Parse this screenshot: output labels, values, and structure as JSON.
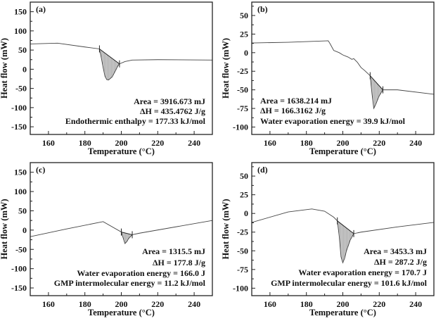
{
  "chart_data": [
    {
      "type": "line",
      "panel_label": "(a)",
      "xlabel": "Temperature (°C)",
      "ylabel": "Heat flow (mW)",
      "xlim": [
        150,
        250
      ],
      "ylim": [
        -170,
        175
      ],
      "xticks": [
        160,
        180,
        200,
        220,
        240
      ],
      "yticks": [
        150,
        100,
        50,
        0,
        -50,
        -100,
        -150
      ],
      "x": [
        150,
        165,
        180,
        188,
        189,
        190,
        191,
        192,
        193,
        195,
        197,
        198,
        199,
        202,
        206,
        220,
        250
      ],
      "y": [
        66,
        68,
        58,
        53,
        30,
        5,
        -18,
        -27,
        -28,
        -20,
        -2,
        8,
        14,
        20,
        24,
        25,
        24
      ],
      "peak_baseline": {
        "x": [
          188,
          199
        ],
        "y": [
          53,
          14
        ]
      },
      "annotations": [
        "Area = 3916.673 mJ",
        "ΔH = 435.4762 J/g",
        "Endothermic enthalpy = 177.33  kJ/mol"
      ],
      "annotation_align": "right"
    },
    {
      "type": "line",
      "panel_label": "(b)",
      "xlabel": "Temperature (°C)",
      "ylabel": "Heat flow (mW)",
      "xlim": [
        150,
        250
      ],
      "ylim": [
        -110,
        68
      ],
      "xticks": [
        160,
        180,
        200,
        220,
        240
      ],
      "yticks": [
        50,
        25,
        0,
        -25,
        -50,
        -75,
        -100
      ],
      "x": [
        150,
        170,
        192,
        193,
        195,
        198,
        200,
        203,
        205,
        206,
        208,
        210,
        212,
        215,
        216,
        217,
        218,
        220,
        222,
        230,
        250
      ],
      "y": [
        13,
        14,
        16,
        12,
        3,
        0,
        -3,
        -6,
        -9,
        -8,
        -13,
        -20,
        -24,
        -31,
        -55,
        -75,
        -70,
        -58,
        -50,
        -50,
        -56
      ],
      "peak_baseline": {
        "x": [
          215,
          222
        ],
        "y": [
          -31,
          -50
        ]
      },
      "annotations": [
        "Area = 1638.214 mJ",
        "ΔH = 166.3162 J/g",
        "Water evaporation energy = 39.9 kJ/mol"
      ],
      "annotation_align": "left"
    },
    {
      "type": "line",
      "panel_label": "(c)",
      "xlabel": "Temperature (°C)",
      "ylabel": "Heat flow (mW)",
      "xlim": [
        150,
        250
      ],
      "ylim": [
        -170,
        175
      ],
      "xticks": [
        160,
        180,
        200,
        220,
        240
      ],
      "yticks": [
        150,
        100,
        50,
        0,
        -50,
        -100,
        -150
      ],
      "x": [
        150,
        170,
        190,
        200,
        201,
        202,
        203,
        204,
        206,
        210,
        250
      ],
      "y": [
        -17,
        3,
        22,
        -5,
        -20,
        -35,
        -30,
        -22,
        -12,
        -8,
        25
      ],
      "peak_baseline": {
        "x": [
          200,
          206
        ],
        "y": [
          -5,
          -12
        ]
      },
      "annotations": [
        "Area = 1315.5 mJ",
        "ΔH = 177.8 J/g",
        "Water evaporation energy  = 166.0 J",
        "GMP intermolecular energy = 11.2 kJ/mol"
      ],
      "annotation_align": "right"
    },
    {
      "type": "line",
      "panel_label": "(d)",
      "xlabel": "Temperature (°C)",
      "ylabel": "Heat flow (mW)",
      "xlim": [
        150,
        250
      ],
      "ylim": [
        -110,
        68
      ],
      "xticks": [
        160,
        180,
        200,
        220,
        240
      ],
      "yticks": [
        50,
        25,
        0,
        -25,
        -50,
        -75,
        -100
      ],
      "x": [
        150,
        170,
        183,
        190,
        195,
        197,
        198,
        199,
        200,
        201,
        202,
        204,
        206,
        210,
        230,
        250
      ],
      "y": [
        -12,
        2,
        6,
        3,
        -5,
        -10,
        -30,
        -58,
        -66,
        -60,
        -50,
        -36,
        -27,
        -25,
        -18,
        -12
      ],
      "peak_baseline": {
        "x": [
          197,
          206
        ],
        "y": [
          -10,
          -27
        ]
      },
      "annotations": [
        "Area = 3453.3 mJ",
        "ΔH = 287.2 J/g",
        "Water evaporation energy = 170.7 J",
        "GMP intermolecular energy = 101.6 kJ/mol"
      ],
      "annotation_align": "right"
    }
  ]
}
